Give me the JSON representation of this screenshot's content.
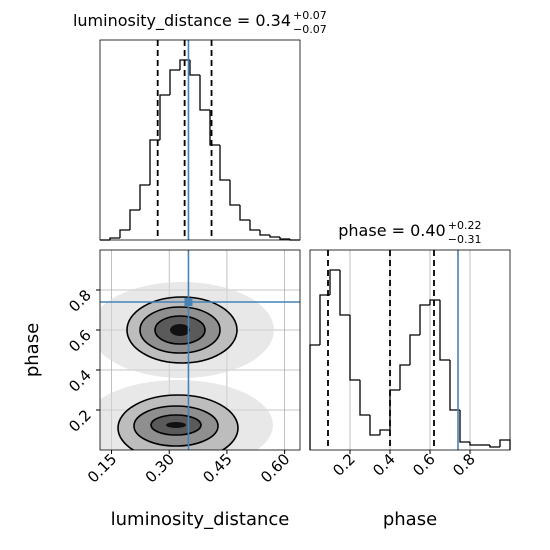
{
  "chart_data": [
    {
      "type": "histogram",
      "title": {
        "main": "luminosity_distance = 0.34",
        "upper": "+0.07",
        "lower": "−0.07"
      },
      "bins": [
        0.12,
        0.146,
        0.172,
        0.198,
        0.224,
        0.25,
        0.276,
        0.302,
        0.328,
        0.354,
        0.38,
        0.406,
        0.432,
        0.458,
        0.484,
        0.51,
        0.536,
        0.562,
        0.588,
        0.614,
        0.64
      ],
      "values": [
        0,
        2,
        10,
        30,
        55,
        100,
        145,
        170,
        180,
        165,
        130,
        95,
        60,
        35,
        20,
        10,
        5,
        3,
        1,
        0
      ],
      "xlim": [
        0.12,
        0.64
      ],
      "ylim": [
        0,
        200
      ],
      "quantiles": [
        0.27,
        0.34,
        0.41
      ],
      "truth": 0.35,
      "color": "#000000",
      "truth_color": "#4682b4",
      "grid": true
    },
    {
      "type": "density",
      "xlabel": "luminosity_distance",
      "ylabel": "phase",
      "xlim": [
        0.12,
        0.64
      ],
      "ylim": [
        0,
        1
      ],
      "xticks": [
        0.15,
        {
          "value": 0.3,
          "label": "0.30"
        },
        0.45,
        {
          "value": 0.6,
          "label": "0.60"
        }
      ],
      "yticks": [
        0.2,
        0.4,
        0.6,
        0.8
      ],
      "truth": {
        "x": 0.35,
        "y": 0.74
      },
      "truth_color": "#4682b4",
      "grid": true
    },
    {
      "type": "histogram",
      "title": {
        "main": "phase = 0.40",
        "upper": "+0.22",
        "lower": "−0.31"
      },
      "xlabel": "phase",
      "bins": [
        0,
        0.05,
        0.1,
        0.15,
        0.2,
        0.25,
        0.3,
        0.35,
        0.4,
        0.45,
        0.5,
        0.55,
        0.6,
        0.65,
        0.7,
        0.75,
        0.8,
        0.85,
        0.9,
        0.95,
        1
      ],
      "values": [
        105,
        155,
        180,
        135,
        70,
        35,
        15,
        20,
        60,
        85,
        115,
        145,
        150,
        90,
        40,
        8,
        5,
        5,
        3,
        10
      ],
      "xlim": [
        0,
        1
      ],
      "ylim": [
        0,
        200
      ],
      "xticks": [
        0.2,
        0.4,
        0.6,
        0.8
      ],
      "quantiles": [
        0.09,
        0.4,
        0.62
      ],
      "truth": 0.74,
      "color": "#000000",
      "truth_color": "#4682b4",
      "grid": true
    }
  ]
}
